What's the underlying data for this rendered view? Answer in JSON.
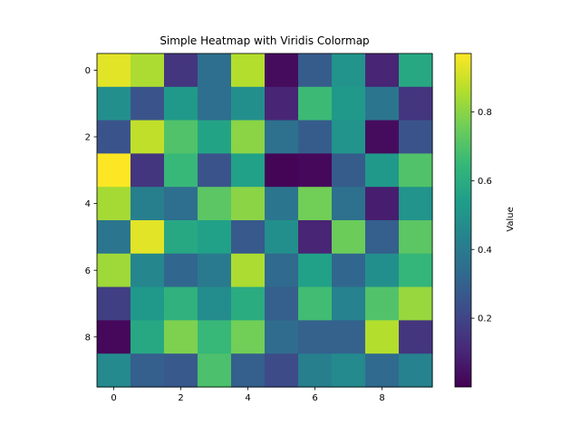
{
  "chart_data": {
    "type": "heatmap",
    "title": "Simple Heatmap with Viridis Colormap",
    "xlabel": "",
    "ylabel": "",
    "x_ticks": [
      0,
      2,
      4,
      6,
      8
    ],
    "y_ticks": [
      0,
      2,
      4,
      6,
      8
    ],
    "xlim": [
      -0.5,
      9.5
    ],
    "ylim": [
      9.5,
      -0.5
    ],
    "colormap": "viridis",
    "grid": false,
    "colorbar": {
      "label": "Value",
      "range": [
        0.0,
        0.97
      ],
      "ticks": [
        0.2,
        0.4,
        0.6,
        0.8
      ],
      "tick_labels": [
        "0.2",
        "0.4",
        "0.6",
        "0.8"
      ]
    },
    "values": [
      [
        0.93,
        0.85,
        0.15,
        0.35,
        0.86,
        0.03,
        0.28,
        0.5,
        0.1,
        0.58
      ],
      [
        0.48,
        0.25,
        0.52,
        0.35,
        0.48,
        0.1,
        0.66,
        0.52,
        0.38,
        0.15
      ],
      [
        0.25,
        0.88,
        0.7,
        0.56,
        0.8,
        0.36,
        0.28,
        0.5,
        0.03,
        0.25
      ],
      [
        0.97,
        0.15,
        0.65,
        0.25,
        0.55,
        0.01,
        0.02,
        0.28,
        0.52,
        0.7
      ],
      [
        0.84,
        0.42,
        0.35,
        0.72,
        0.8,
        0.38,
        0.76,
        0.36,
        0.08,
        0.5
      ],
      [
        0.38,
        0.93,
        0.58,
        0.55,
        0.27,
        0.48,
        0.1,
        0.75,
        0.29,
        0.72
      ],
      [
        0.83,
        0.45,
        0.32,
        0.4,
        0.85,
        0.33,
        0.55,
        0.32,
        0.48,
        0.64
      ],
      [
        0.18,
        0.52,
        0.62,
        0.47,
        0.6,
        0.29,
        0.67,
        0.43,
        0.7,
        0.82
      ],
      [
        0.02,
        0.58,
        0.78,
        0.65,
        0.76,
        0.34,
        0.3,
        0.3,
        0.86,
        0.15
      ],
      [
        0.46,
        0.29,
        0.27,
        0.69,
        0.29,
        0.22,
        0.42,
        0.46,
        0.33,
        0.43
      ]
    ]
  }
}
